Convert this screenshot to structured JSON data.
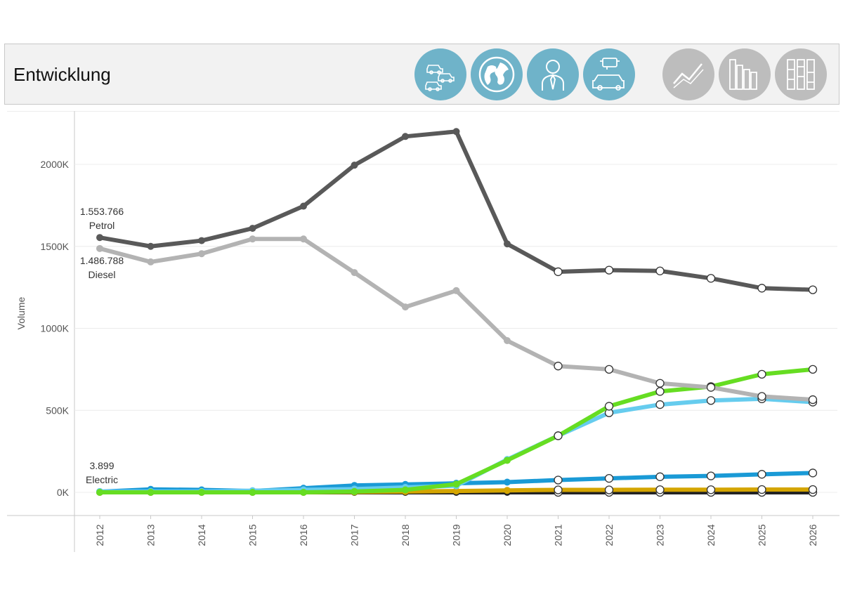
{
  "header": {
    "title": "Entwicklung",
    "buttons": [
      {
        "icon": "cars-icon",
        "color": "#6fb3c9"
      },
      {
        "icon": "globe-icon",
        "color": "#6fb3c9"
      },
      {
        "icon": "person-icon",
        "color": "#6fb3c9"
      },
      {
        "icon": "engine-car-icon",
        "color": "#6fb3c9"
      },
      {
        "icon": "line-chart-icon",
        "color": "#bdbdbd"
      },
      {
        "icon": "bar-chart-icon",
        "color": "#bdbdbd"
      },
      {
        "icon": "stacked-bar-icon",
        "color": "#bdbdbd"
      }
    ]
  },
  "chart_data": {
    "type": "line",
    "ylabel": "Volume",
    "xlabel": "",
    "ylim": [
      0,
      2300000
    ],
    "yticks": [
      0,
      500000,
      1000000,
      1500000,
      2000000
    ],
    "ytick_labels": [
      "0K",
      "500K",
      "1000K",
      "1500K",
      "2000K"
    ],
    "x": [
      "2012",
      "2013",
      "2014",
      "2015",
      "2016",
      "2017",
      "2018",
      "2019",
      "2020",
      "2021",
      "2022",
      "2023",
      "2024",
      "2025",
      "2026"
    ],
    "forecast_from_index": 9,
    "series": [
      {
        "name": "Petrol",
        "color": "#595959",
        "values": [
          1553766,
          1500000,
          1535000,
          1610000,
          1745000,
          1995000,
          2170000,
          2200000,
          1515000,
          1345000,
          1355000,
          1350000,
          1305000,
          1245000,
          1235000
        ]
      },
      {
        "name": "Diesel",
        "color": "#b3b3b3",
        "values": [
          1486788,
          1405000,
          1455000,
          1545000,
          1545000,
          1340000,
          1130000,
          1230000,
          925000,
          770000,
          750000,
          665000,
          640000,
          585000,
          565000
        ]
      },
      {
        "name": "",
        "color": "#66dd22",
        "values": [
          0,
          0,
          0,
          0,
          0,
          5000,
          15000,
          50000,
          195000,
          345000,
          525000,
          615000,
          645000,
          720000,
          750000
        ]
      },
      {
        "name": "",
        "color": "#66ccee",
        "values": [
          5000,
          5000,
          5000,
          10000,
          15000,
          20000,
          30000,
          40000,
          200000,
          345000,
          485000,
          535000,
          560000,
          570000,
          550000
        ]
      },
      {
        "name": "Electric",
        "color": "#1a9ad6",
        "values": [
          3899,
          18000,
          15000,
          8000,
          25000,
          42000,
          48000,
          55000,
          62000,
          75000,
          85000,
          95000,
          100000,
          110000,
          118000
        ]
      },
      {
        "name": "",
        "color": "#d4a500",
        "values": [
          0,
          0,
          0,
          0,
          0,
          2000,
          5000,
          8000,
          12000,
          15000,
          15000,
          16000,
          16000,
          17000,
          17000
        ]
      },
      {
        "name": "",
        "color": "#222222",
        "values": [
          0,
          0,
          0,
          0,
          0,
          0,
          0,
          0,
          0,
          0,
          0,
          0,
          0,
          0,
          0
        ]
      }
    ],
    "annotations": [
      {
        "series": "Petrol",
        "value_label": "1.553.766",
        "name_label": "Petrol"
      },
      {
        "series": "Diesel",
        "value_label": "1.486.788",
        "name_label": "Diesel"
      },
      {
        "series": "Electric",
        "value_label": "3.899",
        "name_label": "Electric"
      }
    ]
  }
}
